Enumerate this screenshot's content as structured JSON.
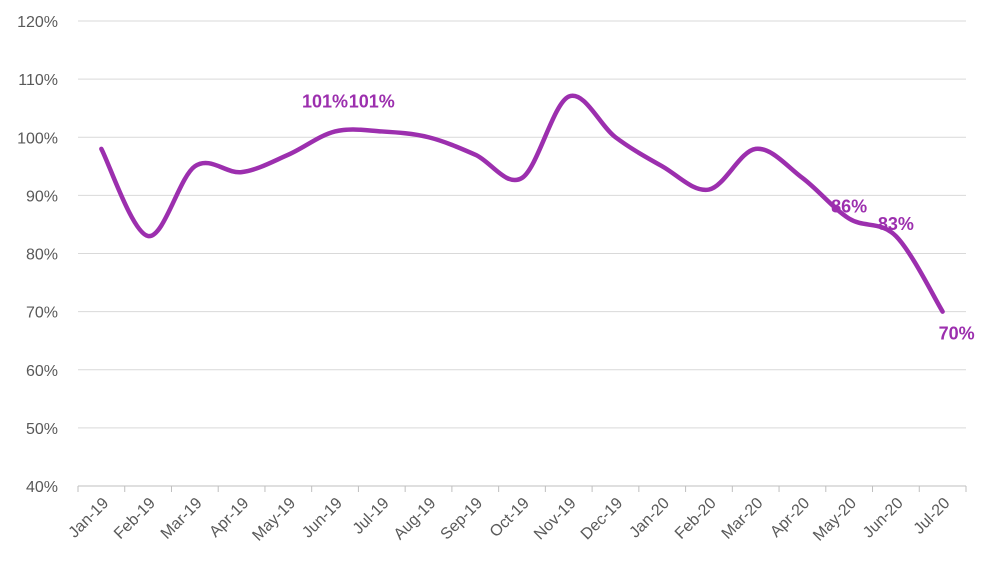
{
  "chart_data": {
    "type": "line",
    "title": "",
    "xlabel": "",
    "ylabel": "",
    "categories": [
      "Jan-19",
      "Feb-19",
      "Mar-19",
      "Apr-19",
      "May-19",
      "Jun-19",
      "Jul-19",
      "Aug-19",
      "Sep-19",
      "Oct-19",
      "Nov-19",
      "Dec-19",
      "Jan-20",
      "Feb-20",
      "Mar-20",
      "Apr-20",
      "May-20",
      "Jun-20",
      "Jul-20"
    ],
    "series": [
      {
        "values": [
          98,
          83,
          95,
          94,
          97,
          101,
          101,
          100,
          97,
          93,
          107,
          100,
          95,
          91,
          98,
          93,
          86,
          83,
          70
        ],
        "color": "#9c2fae"
      }
    ],
    "ylim": [
      40,
      120
    ],
    "y_ticks": [
      40,
      50,
      60,
      70,
      80,
      90,
      100,
      110,
      120
    ],
    "y_tick_labels": [
      "40%",
      "50%",
      "60%",
      "70%",
      "80%",
      "90%",
      "100%",
      "110%",
      "120%"
    ],
    "grid": true,
    "legend": "none",
    "data_labels": [
      {
        "index": 5,
        "text": "101%"
      },
      {
        "index": 6,
        "text": "101%"
      },
      {
        "index": 16,
        "text": "86%"
      },
      {
        "index": 17,
        "text": "83%"
      },
      {
        "index": 18,
        "text": "70%"
      }
    ]
  }
}
